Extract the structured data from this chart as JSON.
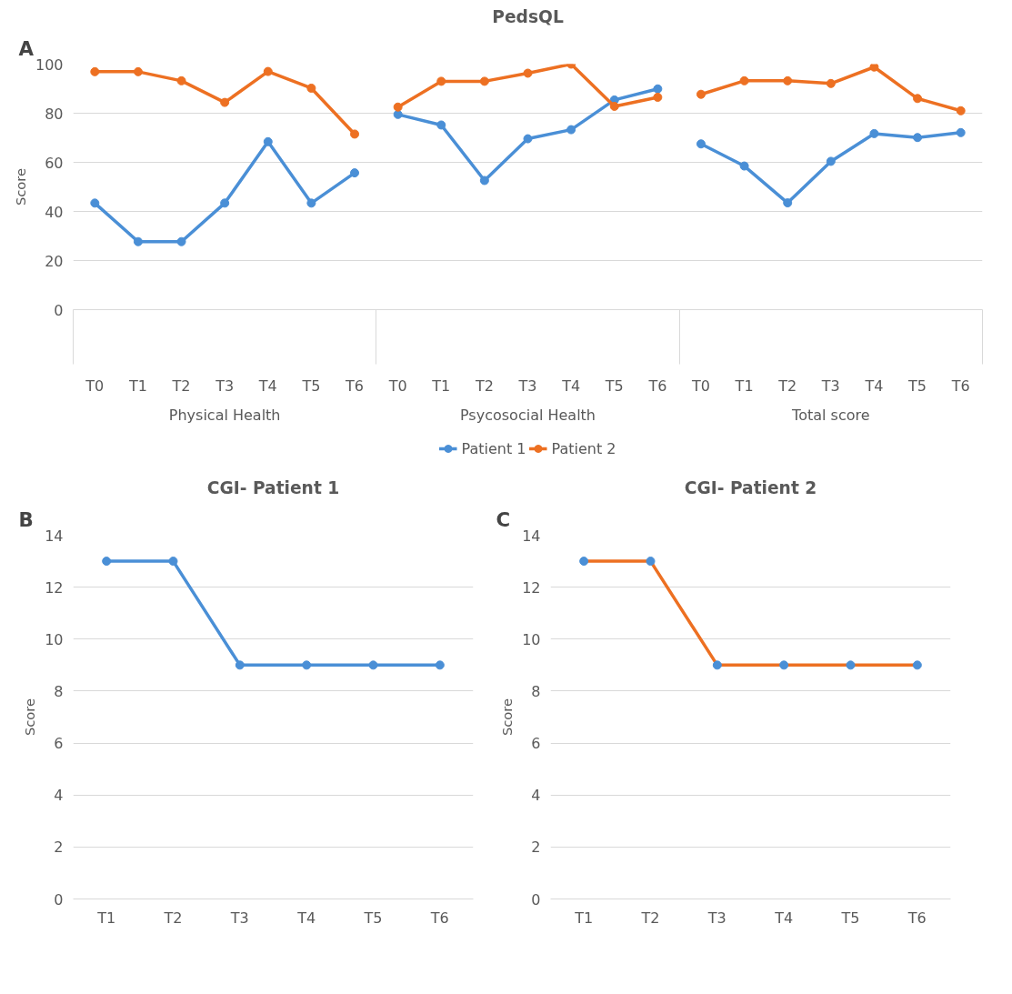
{
  "chart_data": [
    {
      "type": "line",
      "title": "PedsQL",
      "ylabel": "Score",
      "annotations": [
        "A",
        "Physical Health",
        "Psycosocial Health",
        "Total score"
      ],
      "categories": [
        "T0",
        "T1",
        "T2",
        "T3",
        "T4",
        "T5",
        "T6",
        "T0",
        "T1",
        "T2",
        "T3",
        "T4",
        "T5",
        "T6",
        "T0",
        "T1",
        "T2",
        "T3",
        "T4",
        "T5",
        "T6"
      ],
      "series": [
        {
          "name": "Patient 1",
          "color": "#4a8fd6",
          "values": [
            43.4,
            27.7,
            27.7,
            43.4,
            68.4,
            43.4,
            55.7,
            79.5,
            75.2,
            52.6,
            69.6,
            73.3,
            85.4,
            89.9,
            67.5,
            58.5,
            43.5,
            60.4,
            71.7,
            70.1,
            72.1
          ]
        },
        {
          "name": "Patient 2",
          "color": "#ed7022",
          "values": [
            96.9,
            96.9,
            93.2,
            84.4,
            97,
            90.2,
            71.5,
            82.5,
            93,
            93,
            96.3,
            100,
            82.8,
            86.5,
            87.7,
            93.2,
            93.2,
            92.1,
            98.8,
            86,
            81
          ]
        }
      ],
      "ylim": [
        0,
        100
      ],
      "yticks": [
        0,
        20,
        40,
        60,
        80,
        100
      ],
      "grid": "y",
      "legend": "bottom",
      "marker": "circle",
      "line_style": "solid"
    },
    {
      "type": "line",
      "title": "CGI- Patient 1",
      "ylabel": "Score",
      "annotations": [
        "B"
      ],
      "categories": [
        "T1",
        "T2",
        "T3",
        "T4",
        "T5",
        "T6"
      ],
      "series": [
        {
          "color": "#4a8fd6",
          "values": [
            13,
            13,
            9,
            9,
            9,
            9
          ]
        }
      ],
      "ylim": [
        0,
        14
      ],
      "yticks": [
        0,
        2,
        4,
        6,
        8,
        10,
        12,
        14
      ],
      "grid": "y",
      "legend": false,
      "marker": "circle",
      "line_style": "solid"
    },
    {
      "type": "line",
      "title": "CGI- Patient 2",
      "ylabel": "Score",
      "annotations": [
        "C"
      ],
      "categories": [
        "T1",
        "T2",
        "T3",
        "T4",
        "T5",
        "T6"
      ],
      "series": [
        {
          "color": "#ed7022",
          "colors": [
            "#4a8fd6",
            "#4a8fd6",
            "#4a8fd6",
            "#4a8fd6",
            "#4a8fd6",
            "#4a8fd6"
          ],
          "values": [
            13,
            13,
            9,
            9,
            9,
            9
          ]
        }
      ],
      "ylim": [
        0,
        14
      ],
      "yticks": [
        0,
        2,
        4,
        6,
        8,
        10,
        12,
        14
      ],
      "grid": "y",
      "legend": false,
      "marker": "circle",
      "line_style": "solid"
    }
  ]
}
